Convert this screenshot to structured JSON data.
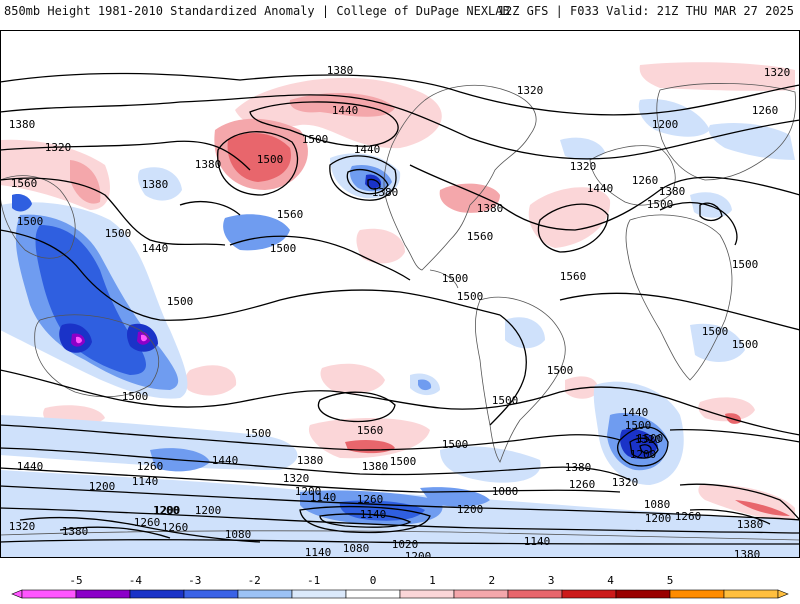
{
  "header": {
    "title_left": "850mb Height 1981-2010 Standardized Anomaly | College of DuPage NEXLAB",
    "title_right": "12Z GFS | F033 Valid: 21Z THU MAR 27 2025"
  },
  "colorbar": {
    "tick_labels": [
      "-5",
      "-4",
      "-3",
      "-2",
      "-1",
      "0",
      "1",
      "2",
      "3",
      "4",
      "5"
    ],
    "colors": [
      "#ff55ff",
      "#8b00c8",
      "#1a33c8",
      "#3a62e6",
      "#9cc2f5",
      "#dbe9fb",
      "#ffffff",
      "#fbd6d8",
      "#f4a7ab",
      "#e8666c",
      "#cc1a1a",
      "#990000",
      "#ff8c00",
      "#ffbf3f"
    ]
  },
  "contour_labels": [
    "1380",
    "1320",
    "1440",
    "1320",
    "1260",
    "1380",
    "1320",
    "1200",
    "1500",
    "1500",
    "1440",
    "1380",
    "1320",
    "1560",
    "1500",
    "1380",
    "1500",
    "1560",
    "1380",
    "1440",
    "1260",
    "1380",
    "1500",
    "1440",
    "1380",
    "1560",
    "1500",
    "1500",
    "1500",
    "1500",
    "1560",
    "1500",
    "1500",
    "1500",
    "1500",
    "1500",
    "1500",
    "1440",
    "1500",
    "1500",
    "1500",
    "1500",
    "1560",
    "1500",
    "1440",
    "1380",
    "1320",
    "1200",
    "1440",
    "1380",
    "1260",
    "1320",
    "1200",
    "1140",
    "1260",
    "1200",
    "1080",
    "1380",
    "1260",
    "1320",
    "1380",
    "1080",
    "1200",
    "1140",
    "1320",
    "1260",
    "1380",
    "1200",
    "1080",
    "1020",
    "1140",
    "1080",
    "1140",
    "1200",
    "1200",
    "1260",
    "1380",
    "1260",
    "1200",
    "1140",
    "1200"
  ],
  "anomaly_colors": {
    "pos1": "#fbd6d8",
    "pos2": "#f4a7ab",
    "pos3": "#e8666c",
    "neg1": "#cfe1fb",
    "neg2": "#6f9cf0",
    "neg3": "#2f5fe0",
    "neg4": "#1a33c8",
    "neg5": "#8b00c8",
    "neg6": "#ff55ff"
  }
}
